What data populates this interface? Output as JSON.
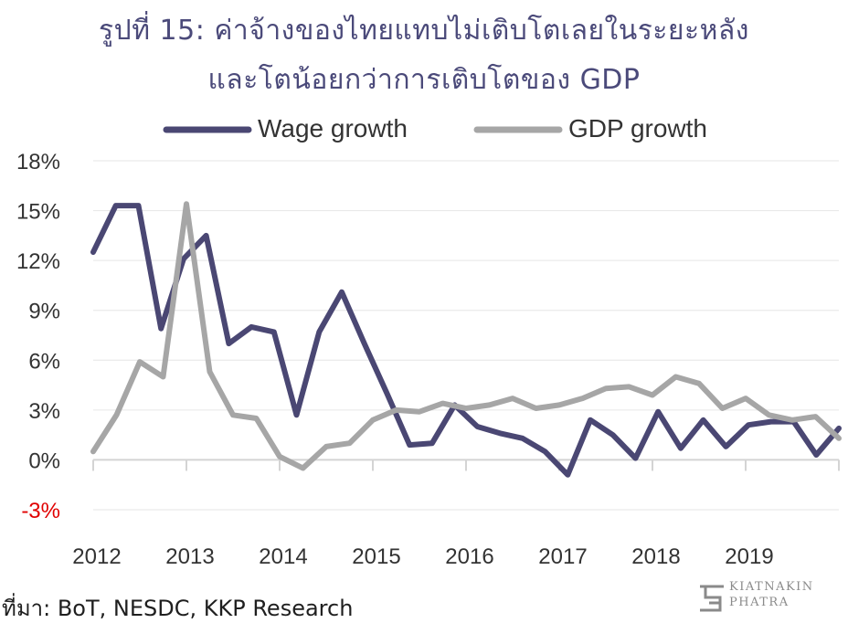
{
  "title_line1": "รูปที่ 15: ค่าจ้างของไทยแทบไม่เติบโตเลยในระยะหลัง",
  "title_line2": "และโตน้อยกว่าการเติบโตของ GDP",
  "source": "ที่มา: BoT, NESDC, KKP Research",
  "logo": {
    "line1": "KIATNAKIN",
    "line2": "PHATRA"
  },
  "chart_data": {
    "type": "line",
    "ylim": [
      -3,
      18
    ],
    "yticks": [
      {
        "value": 18,
        "label": "18%"
      },
      {
        "value": 15,
        "label": "15%"
      },
      {
        "value": 12,
        "label": "12%"
      },
      {
        "value": 9,
        "label": "9%"
      },
      {
        "value": 6,
        "label": "6%"
      },
      {
        "value": 3,
        "label": "3%"
      },
      {
        "value": 0,
        "label": "0%"
      },
      {
        "value": -3,
        "label": "-3%"
      }
    ],
    "negative_tick_color": "#e00000",
    "grid": true,
    "legend_position": "top",
    "xlabels": [
      "2012",
      "2013",
      "2014",
      "2015",
      "2016",
      "2017",
      "2018",
      "2019"
    ],
    "series": [
      {
        "name": "Wage growth",
        "color": "#4a4773",
        "values": [
          12.5,
          15.3,
          15.3,
          7.9,
          12.1,
          13.5,
          7.0,
          8.0,
          7.7,
          2.7,
          7.7,
          10.1,
          7.0,
          4.0,
          0.9,
          1.0,
          3.3,
          2.0,
          1.6,
          1.3,
          0.5,
          -0.9,
          2.4,
          1.5,
          0.1,
          2.9,
          0.7,
          2.4,
          0.8,
          2.1,
          2.3,
          2.3,
          0.3,
          1.9
        ]
      },
      {
        "name": "GDP growth",
        "color": "#a6a6a6",
        "values": [
          0.5,
          2.7,
          5.9,
          5.0,
          15.4,
          5.3,
          2.7,
          2.5,
          0.2,
          -0.5,
          0.8,
          1.0,
          2.4,
          3.0,
          2.9,
          3.4,
          3.1,
          3.3,
          3.7,
          3.1,
          3.3,
          3.7,
          4.3,
          4.4,
          3.9,
          5.0,
          4.6,
          3.1,
          3.7,
          2.7,
          2.4,
          2.6,
          1.3
        ]
      }
    ]
  }
}
